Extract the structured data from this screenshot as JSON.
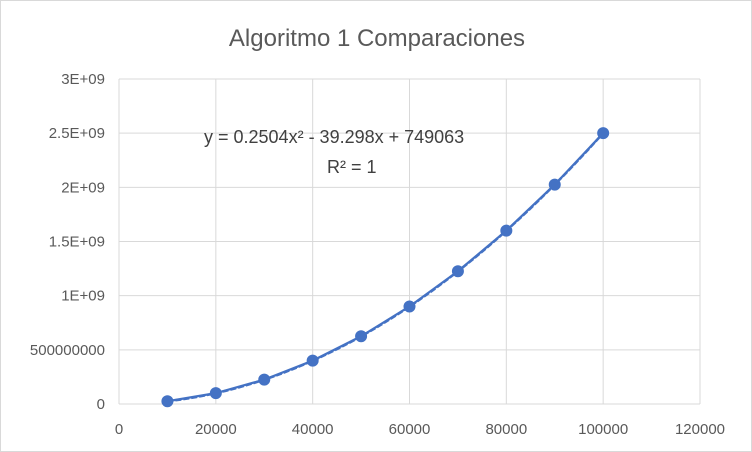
{
  "chart_data": {
    "type": "scatter",
    "title": "Algoritmo 1 Comparaciones",
    "xlabel": "",
    "ylabel": "",
    "xlim": [
      0,
      120000
    ],
    "ylim": [
      0,
      3000000000
    ],
    "x_ticks": [
      "0",
      "20000",
      "40000",
      "60000",
      "80000",
      "100000",
      "120000"
    ],
    "y_ticks": [
      "0",
      "500000000",
      "1E+09",
      "1.5E+09",
      "2E+09",
      "2.5E+09",
      "3E+09"
    ],
    "grid": true,
    "legend": "none",
    "series": [
      {
        "x": [
          10000,
          20000,
          30000,
          40000,
          50000,
          60000,
          70000,
          80000,
          90000,
          100000
        ],
        "y": [
          25000000,
          100000000,
          225000000,
          400000000,
          625000000,
          900000000,
          1225000000,
          1600000000,
          2025000000,
          2500000000
        ],
        "color": "#4472c4"
      }
    ],
    "trendline": {
      "type": "polynomial",
      "order": 2,
      "coefficients": [
        0.2504,
        -39.298,
        749063
      ],
      "equation": "y = 0.2504x² - 39.298x + 749063",
      "r_squared": "R² = 1",
      "color": "#4472c4"
    }
  }
}
